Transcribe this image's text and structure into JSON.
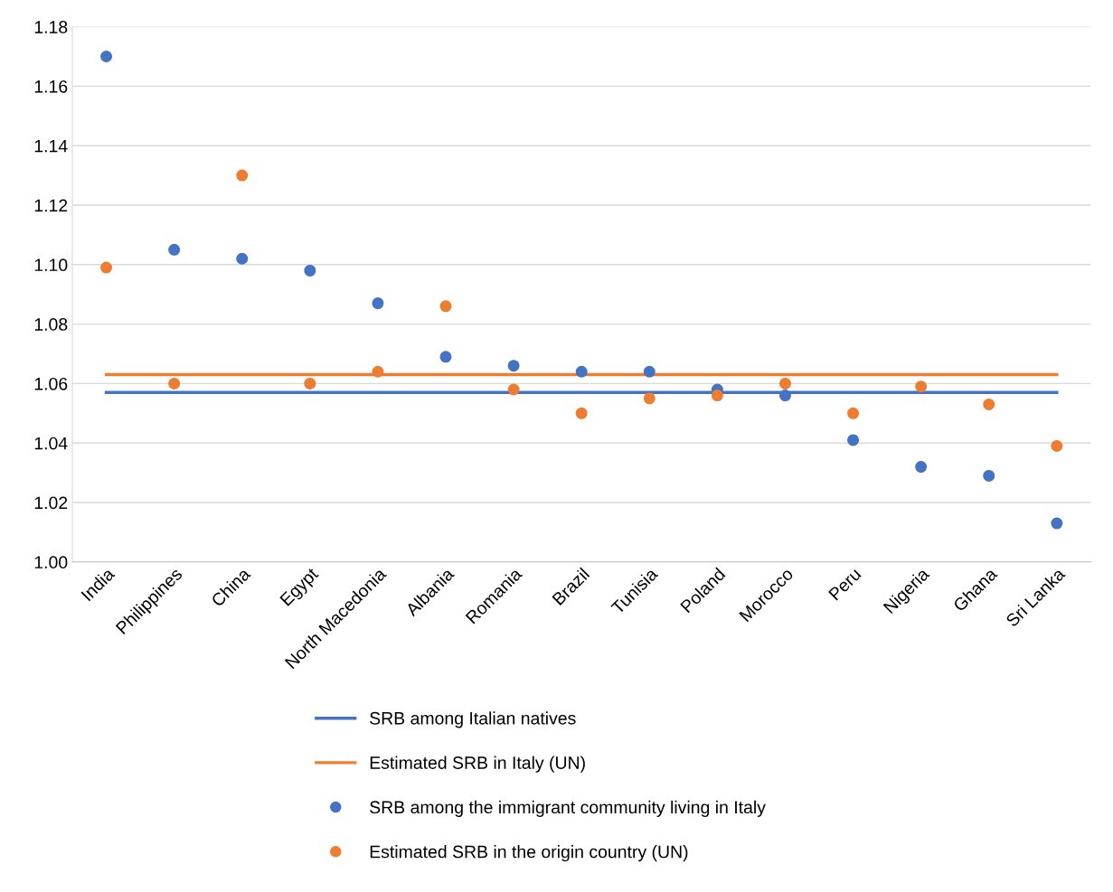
{
  "chart_data": {
    "type": "scatter",
    "categories": [
      "India",
      "Philippines",
      "China",
      "Egypt",
      "North Macedonia",
      "Albania",
      "Romania",
      "Brazil",
      "Tunisia",
      "Poland",
      "Morocco",
      "Peru",
      "Nigeria",
      "Ghana",
      "Sri Lanka"
    ],
    "series": [
      {
        "name": "SRB among Italian natives",
        "type": "line",
        "color": "#4472c4",
        "marker": "none",
        "values": [
          1.057,
          1.057,
          1.057,
          1.057,
          1.057,
          1.057,
          1.057,
          1.057,
          1.057,
          1.057,
          1.057,
          1.057,
          1.057,
          1.057,
          1.057
        ]
      },
      {
        "name": "Estimated SRB in Italy (UN)",
        "type": "line",
        "color": "#ed7d31",
        "marker": "none",
        "values": [
          1.063,
          1.063,
          1.063,
          1.063,
          1.063,
          1.063,
          1.063,
          1.063,
          1.063,
          1.063,
          1.063,
          1.063,
          1.063,
          1.063,
          1.063
        ]
      },
      {
        "name": "SRB among the immigrant community living in Italy",
        "color": "#4472c4",
        "marker": "circle",
        "values": [
          1.17,
          1.105,
          1.102,
          1.098,
          1.087,
          1.069,
          1.066,
          1.064,
          1.064,
          1.058,
          1.056,
          1.041,
          1.032,
          1.029,
          1.013
        ]
      },
      {
        "name": "Estimated SRB in the origin country (UN)",
        "color": "#ed7d31",
        "marker": "circle",
        "values": [
          1.099,
          1.06,
          1.13,
          1.06,
          1.064,
          1.086,
          1.058,
          1.05,
          1.055,
          1.056,
          1.06,
          1.05,
          1.059,
          1.053,
          1.039
        ]
      }
    ],
    "ylim": [
      1.0,
      1.18
    ],
    "yticks": [
      {
        "value": 1.0,
        "label": "1.00"
      },
      {
        "value": 1.02,
        "label": "1.02"
      },
      {
        "value": 1.04,
        "label": "1.04"
      },
      {
        "value": 1.06,
        "label": "1.06"
      },
      {
        "value": 1.08,
        "label": "1.08"
      },
      {
        "value": 1.1,
        "label": "1.10"
      },
      {
        "value": 1.12,
        "label": "1.12"
      },
      {
        "value": 1.14,
        "label": "1.14"
      },
      {
        "value": 1.16,
        "label": "1.16"
      },
      {
        "value": 1.18,
        "label": "1.18"
      }
    ],
    "grid": "y",
    "legend": "bottom"
  }
}
